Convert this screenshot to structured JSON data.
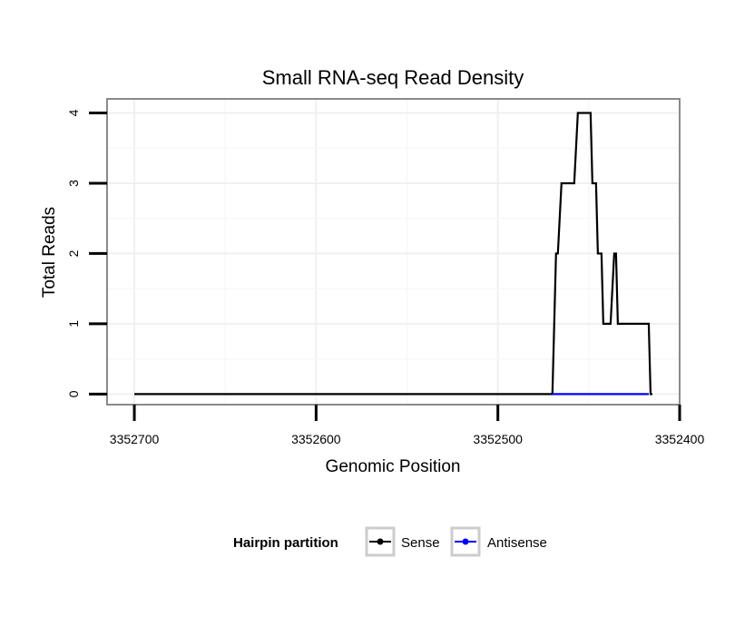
{
  "chart_data": {
    "type": "line",
    "title": "Small RNA-seq Read Density",
    "xlabel": "Genomic Position",
    "ylabel": "Total Reads",
    "xlim": [
      3352715,
      3352400
    ],
    "ylim": [
      -0.15,
      4.2
    ],
    "xticks": [
      3352700,
      3352600,
      3352500,
      3352400
    ],
    "xtick_labels": [
      "3352700",
      "3352600",
      "3352500",
      "3352400"
    ],
    "yticks": [
      0,
      1,
      2,
      3,
      4
    ],
    "ytick_labels": [
      "0",
      "1",
      "2",
      "3",
      "4"
    ],
    "grid": true,
    "legend_position": "bottom",
    "legend_title": "Hairpin partition",
    "series": [
      {
        "name": "Sense",
        "color": "#000000",
        "x": [
          3352700,
          3352470,
          3352468,
          3352467,
          3352465,
          3352463,
          3352458,
          3352456,
          3352450,
          3352449,
          3352448,
          3352446,
          3352445,
          3352443,
          3352442,
          3352438,
          3352436,
          3352435,
          3352434,
          3352432,
          3352417,
          3352416,
          3352415
        ],
        "y": [
          0,
          0,
          2,
          2,
          3,
          3,
          3,
          4,
          4,
          4,
          3,
          3,
          2,
          2,
          1,
          1,
          2,
          2,
          1,
          1,
          1,
          0,
          0
        ]
      },
      {
        "name": "Antisense",
        "color": "#0000ff",
        "x": [
          3352470,
          3352417
        ],
        "y": [
          0,
          0
        ]
      }
    ]
  }
}
